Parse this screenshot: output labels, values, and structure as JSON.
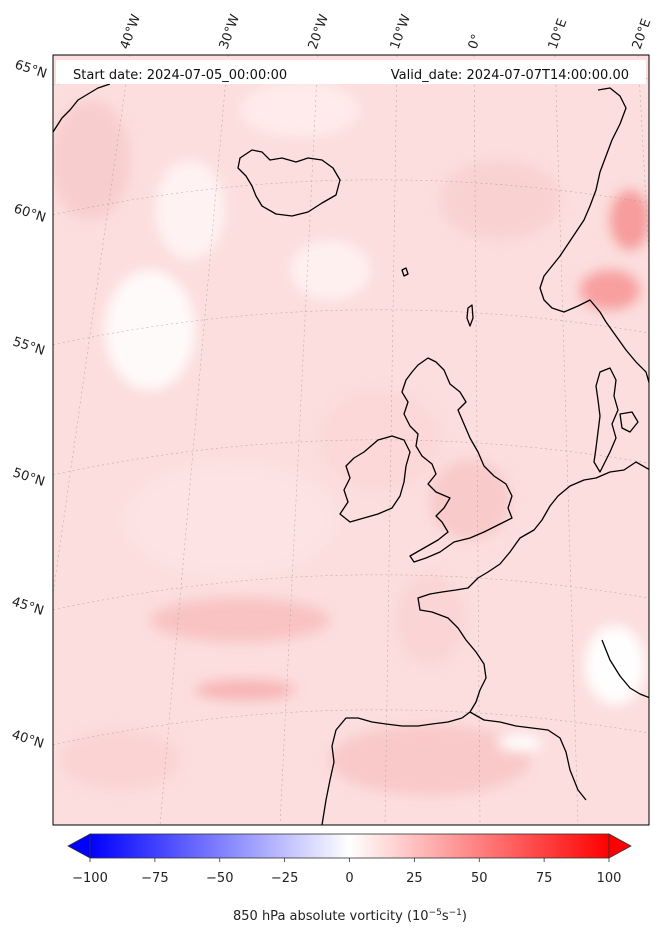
{
  "header": {
    "start_date": "Start date: 2024-07-05_00:00:00",
    "valid_date": "Valid_date: 2024-07-07T14:00:00.00"
  },
  "lon_labels": [
    "40°W",
    "30°W",
    "20°W",
    "10°W",
    "0°",
    "10°E",
    "20°E"
  ],
  "lat_labels": [
    "65°N",
    "60°N",
    "55°N",
    "50°N",
    "45°N",
    "40°N"
  ],
  "colorbar": {
    "min": -100,
    "max": 100,
    "extend": "both",
    "ticks": [
      "−100",
      "−75",
      "−50",
      "−25",
      "0",
      "25",
      "50",
      "75",
      "100"
    ],
    "label_prefix": "850 hPa absolute vorticity (10",
    "label_exp1": "−5",
    "label_mid": "s",
    "label_exp2": "−1",
    "label_suffix": ")",
    "colors": {
      "negative": "#0000ff",
      "zero": "#ffffff",
      "positive": "#ff0000"
    }
  },
  "map": {
    "projection": "polar stereographic",
    "coastline_color": "#000000"
  }
}
